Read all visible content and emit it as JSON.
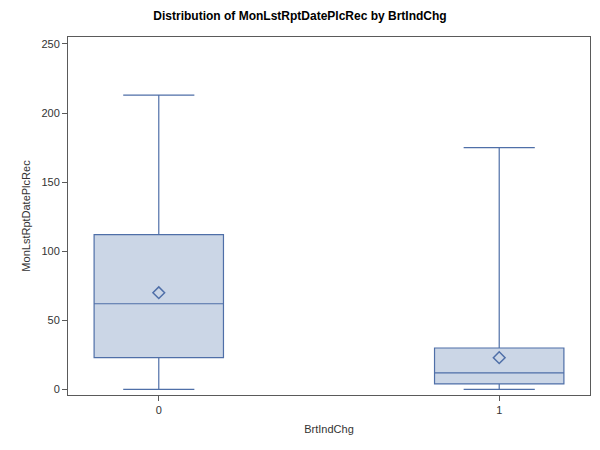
{
  "chart_data": {
    "type": "box",
    "title": "Distribution of MonLstRptDatePlcRec by BrtIndChg",
    "x_label": "BrtIndChg",
    "y_label": "MonLstRptDatePlcRec",
    "categories": [
      "0",
      "1"
    ],
    "min": [
      0,
      0
    ],
    "q1": [
      23,
      4
    ],
    "median": [
      62,
      12
    ],
    "q3": [
      112,
      30
    ],
    "max": [
      213,
      175
    ],
    "mean": [
      70,
      23
    ],
    "color": "#cbd6e6",
    "marker": "diamond-open",
    "ylim": [
      -4,
      255
    ],
    "yticks": [
      0,
      50,
      100,
      150,
      200,
      250
    ],
    "grid": false
  }
}
